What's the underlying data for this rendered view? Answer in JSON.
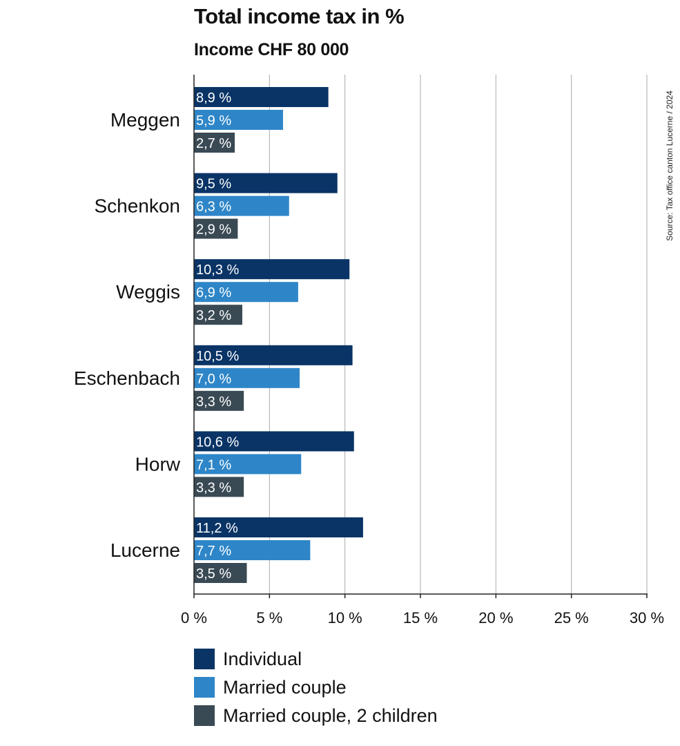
{
  "chart_data": {
    "type": "bar",
    "orientation": "horizontal",
    "title": "Total income tax in %",
    "subtitle": "Income CHF 80 000",
    "source": "Source: Tax office canton Lucerne / 2024",
    "categories": [
      "Meggen",
      "Schenkon",
      "Weggis",
      "Eschenbach",
      "Horw",
      "Lucerne"
    ],
    "series": [
      {
        "name": "Individual",
        "color": "#0a3466",
        "values": [
          8.9,
          9.5,
          10.3,
          10.5,
          10.6,
          11.2
        ],
        "labels": [
          "8,9 %",
          "9,5 %",
          "10,3 %",
          "10,5 %",
          "10,6 %",
          "11,2 %"
        ]
      },
      {
        "name": "Married couple",
        "color": "#2e86c8",
        "values": [
          5.9,
          6.3,
          6.9,
          7.0,
          7.1,
          7.7
        ],
        "labels": [
          "5,9 %",
          "6,3 %",
          "6,9 %",
          "7,0 %",
          "7,1 %",
          "7,7 %"
        ]
      },
      {
        "name": "Married couple, 2 children",
        "color": "#3a4a55",
        "values": [
          2.7,
          2.9,
          3.2,
          3.3,
          3.3,
          3.5
        ],
        "labels": [
          "2,7 %",
          "2,9 %",
          "3,2 %",
          "3,3 %",
          "3,3 %",
          "3,5 %"
        ]
      }
    ],
    "xlim": [
      0,
      30
    ],
    "xticks": [
      0,
      5,
      10,
      15,
      20,
      25,
      30
    ],
    "xtick_labels": [
      "0 %",
      "5 %",
      "10 %",
      "15 %",
      "20 %",
      "25 %",
      "30 %"
    ],
    "grid": true,
    "legend": "bottom-left"
  }
}
